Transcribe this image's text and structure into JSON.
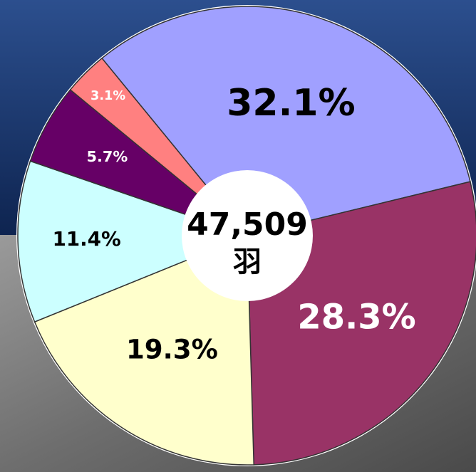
{
  "chart_data": {
    "type": "pie",
    "categories": [
      null,
      null,
      null,
      null,
      null,
      null
    ],
    "values": [
      32.1,
      28.3,
      19.3,
      11.4,
      5.7,
      3.1
    ],
    "value_labels": [
      "32.1%",
      "28.3%",
      "19.3%",
      "11.4%",
      "5.7%",
      "3.1%"
    ],
    "colors": [
      "#a0a0ff",
      "#993366",
      "#ffffcc",
      "#ccffff",
      "#660066",
      "#ff8080"
    ],
    "label_colors": [
      "#000000",
      "#ffffff",
      "#000000",
      "#000000",
      "#ffffff",
      "#ffffff"
    ],
    "center_label": "47,509",
    "center_unit": "羽"
  }
}
